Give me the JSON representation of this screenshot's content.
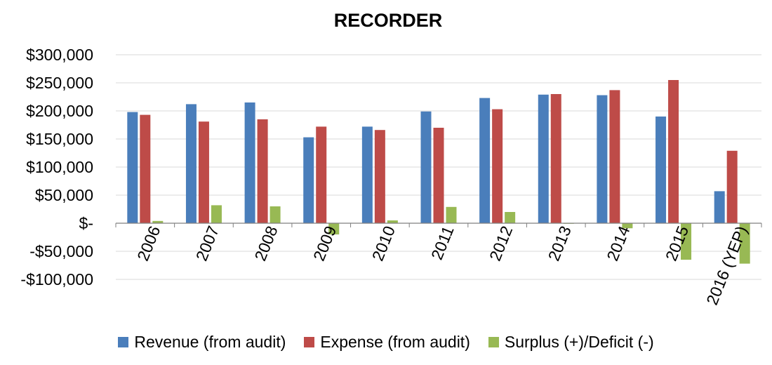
{
  "chart_data": {
    "type": "bar",
    "title": "RECORDER",
    "xlabel": "",
    "ylabel": "",
    "ylim": [
      -100000,
      300000
    ],
    "yticks": [
      300000,
      250000,
      200000,
      150000,
      100000,
      50000,
      0,
      -50000,
      -100000
    ],
    "ytick_labels": [
      "$300,000",
      "$250,000",
      "$200,000",
      "$150,000",
      "$100,000",
      "$50,000",
      "$-",
      "-$50,000",
      "-$100,000"
    ],
    "categories": [
      "2006",
      "2007",
      "2008",
      "2009",
      "2010",
      "2011",
      "2012",
      "2013",
      "2014",
      "2015",
      "2016 (YEP)"
    ],
    "grid": true,
    "legend_position": "bottom",
    "series": [
      {
        "name": "Revenue (from audit)",
        "color": "#4a7ebb",
        "values": [
          198000,
          212000,
          215000,
          153000,
          172000,
          199000,
          223000,
          229000,
          228000,
          190000,
          57000
        ]
      },
      {
        "name": "Expense (from audit)",
        "color": "#be4b48",
        "values": [
          193000,
          181000,
          185000,
          172000,
          166000,
          170000,
          203000,
          230000,
          237000,
          255000,
          129000
        ]
      },
      {
        "name": "Surplus (+)/Deficit (-)",
        "color": "#98b954",
        "values": [
          4000,
          32000,
          30000,
          -20000,
          5000,
          29000,
          20000,
          -1000,
          -9000,
          -65000,
          -72000
        ]
      }
    ]
  }
}
